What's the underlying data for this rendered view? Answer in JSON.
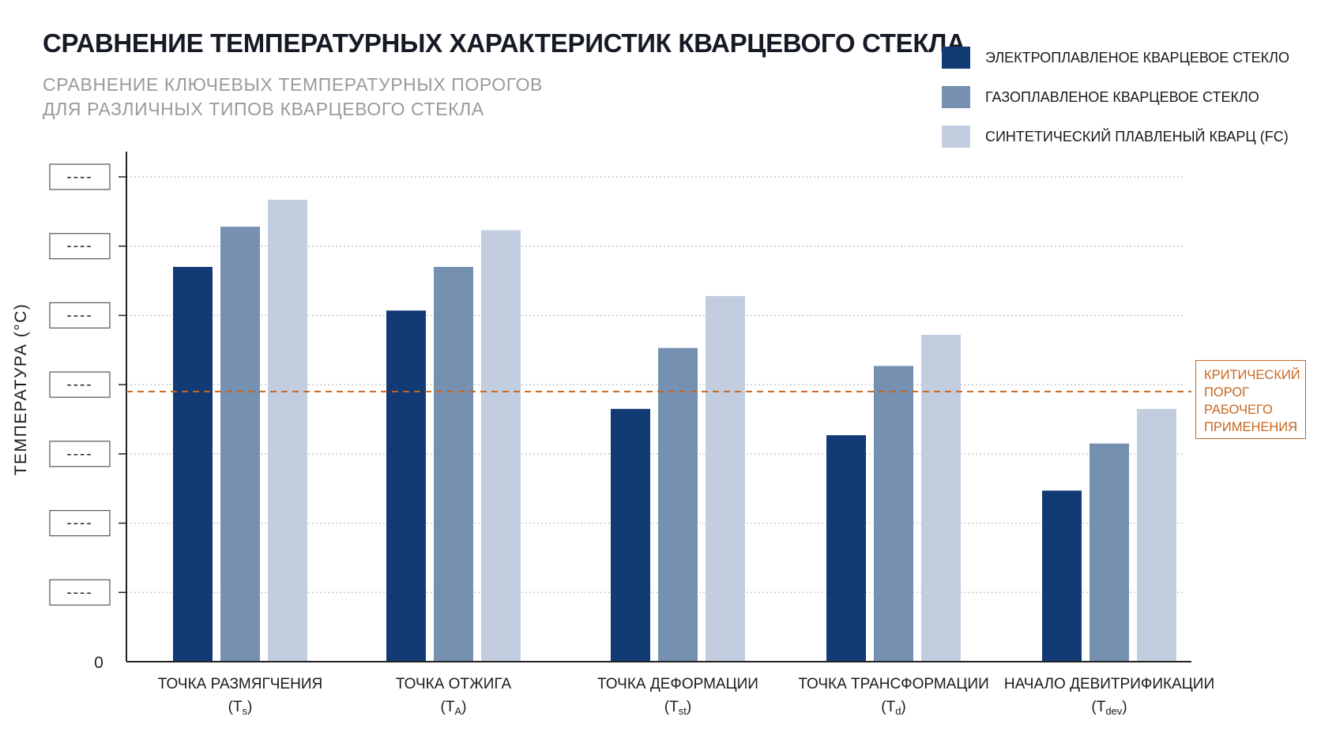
{
  "title": "СРАВНЕНИЕ ТЕМПЕРАТУРНЫХ ХАРАКТЕРИСТИК КВАРЦЕВОГО СТЕКЛА",
  "subtitle_line1": "СРАВНЕНИЕ КЛЮЧЕВЫХ ТЕМПЕРАТУРНЫХ ПОРОГОВ",
  "subtitle_line2": "ДЛЯ РАЗЛИЧНЫХ ТИПОВ КВАРЦЕВОГО СТЕКЛА",
  "annotation": {
    "lines": [
      "КРИТИЧЕСКИЙ",
      "ПОРОГ",
      "РАБОЧЕГО",
      "ПРИМЕНЕНИЯ"
    ],
    "color": "#c8661f"
  },
  "chart_data": {
    "type": "bar",
    "title": "СРАВНЕНИЕ ТЕМПЕРАТУРНЫХ ХАРАКТЕРИСТИК КВАРЦЕВОГО СТЕКЛА",
    "ylabel": "ТЕМПЕРАТУРА (°C)",
    "xlabel": "",
    "ylim": [
      0,
      7
    ],
    "ytick_values": [
      1,
      2,
      3,
      4,
      5,
      6,
      7
    ],
    "ytick_labels": [
      "----",
      "----",
      "----",
      "----",
      "----",
      "----",
      "----"
    ],
    "zero_label": "0",
    "grid": "horizontal-dotted",
    "legend_position": "top-right",
    "categories": [
      {
        "label": "ТОЧКА РАЗМЯГЧЕНИЯ",
        "sym": "T",
        "sub": "s"
      },
      {
        "label": "ТОЧКА ОТЖИГА",
        "sym": "T",
        "sub": "A"
      },
      {
        "label": "ТОЧКА ДЕФОРМАЦИИ",
        "sym": "T",
        "sub": "st"
      },
      {
        "label": "ТОЧКА ТРАНСФОРМАЦИИ",
        "sym": "T",
        "sub": "d"
      },
      {
        "label": "НАЧАЛО ДЕВИТРИФИКАЦИИ",
        "sym": "T",
        "sub": "dev"
      }
    ],
    "series": [
      {
        "name": "ЭЛЕКТРОПЛАВЛЕНОЕ КВАРЦЕВОЕ СТЕКЛО",
        "color": "#123a75",
        "values": [
          5.7,
          5.07,
          3.65,
          3.27,
          2.47
        ]
      },
      {
        "name": "ГАЗОПЛАВЛЕНОЕ КВАРЦЕВОЕ СТЕКЛО",
        "color": "#7590b0",
        "values": [
          6.28,
          5.7,
          4.53,
          4.27,
          3.15
        ]
      },
      {
        "name": "СИНТЕТИЧЕСКИЙ ПЛАВЛЕНЫЙ КВАРЦ (FC)",
        "color": "#c2cedf",
        "values": [
          6.67,
          6.23,
          5.28,
          4.72,
          3.65
        ]
      }
    ],
    "threshold": {
      "value": 3.9,
      "color": "#c8661f",
      "style": "dashed"
    }
  }
}
